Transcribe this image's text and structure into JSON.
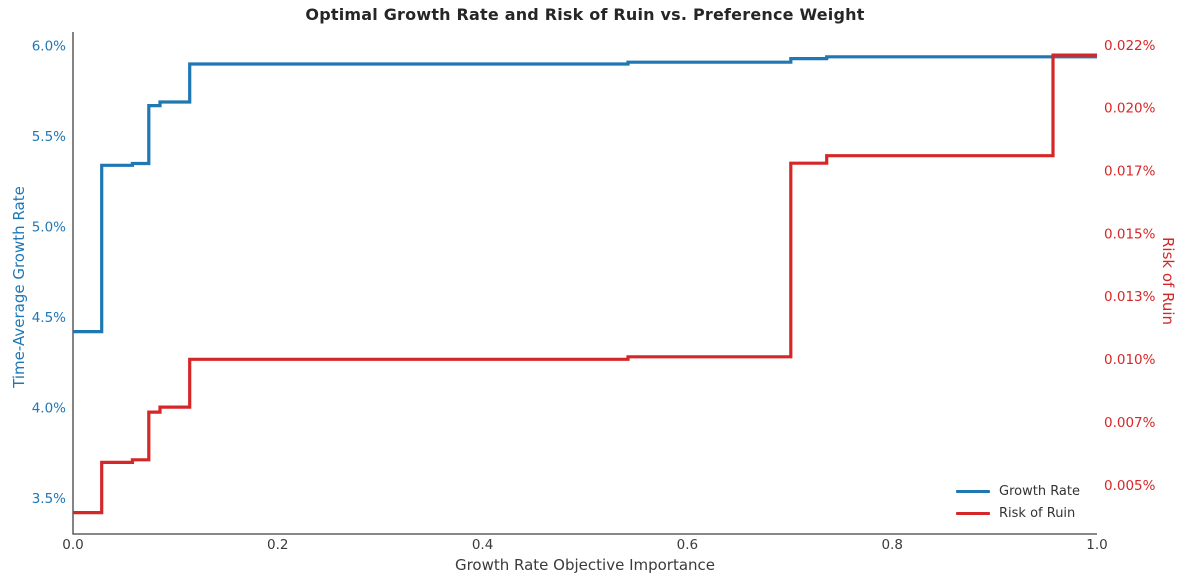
{
  "colors": {
    "growth_blue": "#1f77b4",
    "ruin_red": "#d62728",
    "tick_text": "#3b3b3b",
    "spine": "#424242",
    "title_text": "#262626"
  },
  "chart_data": {
    "type": "line",
    "title": "Optimal Growth Rate and Risk of Ruin vs. Preference Weight",
    "xlabel": "Growth Rate Objective Importance",
    "ylabel_left": "Time-Average Growth Rate",
    "ylabel_right": "Risk of Ruin",
    "grid": false,
    "legend_position": "lower right",
    "xlim": [
      0.0,
      1.0
    ],
    "ylim_left": [
      3.301,
      6.077
    ],
    "ylim_right": [
      0.00305,
      0.02302
    ],
    "x_ticks": {
      "values": [
        0.0,
        0.2,
        0.4,
        0.6,
        0.8,
        1.0
      ],
      "labels": [
        "0.0",
        "0.2",
        "0.4",
        "0.6",
        "0.8",
        "1.0"
      ]
    },
    "left_ticks": {
      "values": [
        6.0,
        5.5,
        5.0,
        4.5,
        4.0,
        3.5
      ],
      "labels": [
        "6.0%",
        "5.5%",
        "5.0%",
        "4.5%",
        "4.0%",
        "3.5%"
      ]
    },
    "right_ticks": {
      "values": [
        0.0225,
        0.02,
        0.0175,
        0.015,
        0.0125,
        0.01,
        0.0075,
        0.005
      ],
      "labels": [
        "0.022%",
        "0.020%",
        "0.017%",
        "0.015%",
        "0.013%",
        "0.010%",
        "0.007%",
        "0.005%"
      ]
    },
    "series": [
      {
        "name": "Growth Rate",
        "axis": "left",
        "color": "#1f77b4",
        "step": "post",
        "units": "percent growth rate",
        "points": [
          [
            0.0,
            4.42
          ],
          [
            0.028,
            5.34
          ],
          [
            0.058,
            5.35
          ],
          [
            0.074,
            5.67
          ],
          [
            0.085,
            5.69
          ],
          [
            0.114,
            5.9
          ],
          [
            0.542,
            5.91
          ],
          [
            0.701,
            5.93
          ],
          [
            0.736,
            5.94
          ],
          [
            1.0,
            5.94
          ]
        ]
      },
      {
        "name": "Risk of Ruin",
        "axis": "right",
        "color": "#d62728",
        "step": "post",
        "units": "percent risk of ruin",
        "points": [
          [
            0.0,
            0.0039
          ],
          [
            0.028,
            0.0059
          ],
          [
            0.058,
            0.006
          ],
          [
            0.074,
            0.0079
          ],
          [
            0.085,
            0.0081
          ],
          [
            0.114,
            0.01
          ],
          [
            0.542,
            0.0101
          ],
          [
            0.701,
            0.0178
          ],
          [
            0.736,
            0.0181
          ],
          [
            0.957,
            0.0221
          ],
          [
            1.0,
            0.0221
          ]
        ]
      }
    ]
  }
}
